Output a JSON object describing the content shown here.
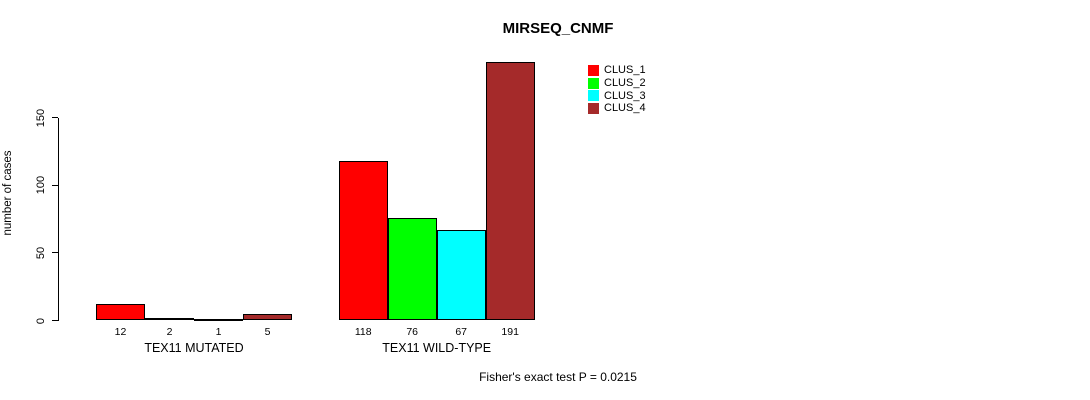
{
  "chart_data": {
    "type": "bar",
    "title": "MIRSEQ_CNMF",
    "ylabel": "number of cases",
    "ylim": [
      0,
      150
    ],
    "yticks": [
      0,
      50,
      100,
      150
    ],
    "grid": false,
    "legend_position": "top-right-inside",
    "categories": [
      "TEX11 MUTATED",
      "TEX11 WILD-TYPE"
    ],
    "series": [
      {
        "name": "CLUS_1",
        "color": "#FF0000",
        "values": [
          12,
          118
        ]
      },
      {
        "name": "CLUS_2",
        "color": "#00FF00",
        "values": [
          2,
          76
        ]
      },
      {
        "name": "CLUS_3",
        "color": "#00FFFF",
        "values": [
          1,
          67
        ]
      },
      {
        "name": "CLUS_4",
        "color": "#A52A2A",
        "values": [
          5,
          191
        ]
      }
    ],
    "footnote": "Fisher's exact test P = 0.0215"
  }
}
